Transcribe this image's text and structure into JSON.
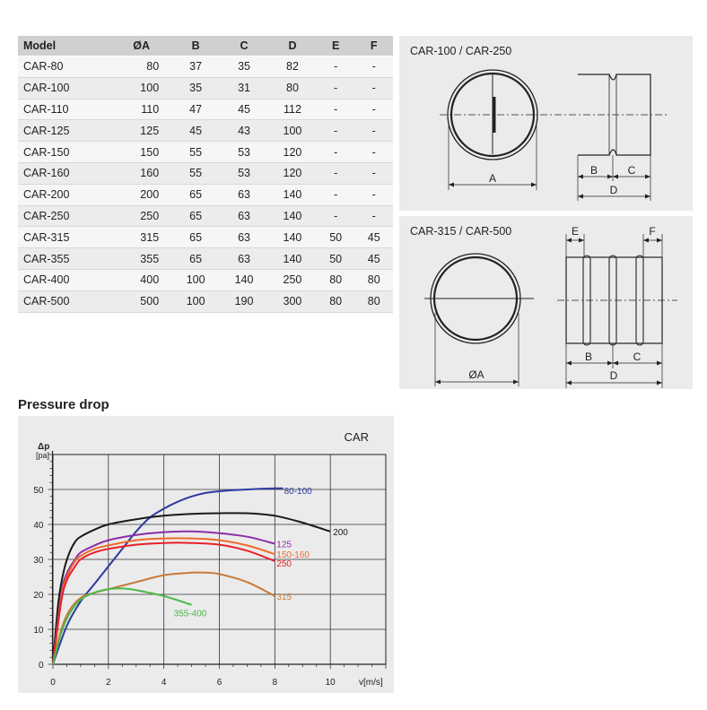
{
  "dimensions_table": {
    "headers": [
      "Model",
      "ØA",
      "B",
      "C",
      "D",
      "E",
      "F"
    ],
    "rows": [
      [
        "CAR-80",
        "80",
        "37",
        "35",
        "82",
        "-",
        "-"
      ],
      [
        "CAR-100",
        "100",
        "35",
        "31",
        "80",
        "-",
        "-"
      ],
      [
        "CAR-110",
        "110",
        "47",
        "45",
        "112",
        "-",
        "-"
      ],
      [
        "CAR-125",
        "125",
        "45",
        "43",
        "100",
        "-",
        "-"
      ],
      [
        "CAR-150",
        "150",
        "55",
        "53",
        "120",
        "-",
        "-"
      ],
      [
        "CAR-160",
        "160",
        "55",
        "53",
        "120",
        "-",
        "-"
      ],
      [
        "CAR-200",
        "200",
        "65",
        "63",
        "140",
        "-",
        "-"
      ],
      [
        "CAR-250",
        "250",
        "65",
        "63",
        "140",
        "-",
        "-"
      ],
      [
        "CAR-315",
        "315",
        "65",
        "63",
        "140",
        "50",
        "45"
      ],
      [
        "CAR-355",
        "355",
        "65",
        "63",
        "140",
        "50",
        "45"
      ],
      [
        "CAR-400",
        "400",
        "100",
        "140",
        "250",
        "80",
        "80"
      ],
      [
        "CAR-500",
        "500",
        "100",
        "190",
        "300",
        "80",
        "80"
      ]
    ]
  },
  "drawing_1": {
    "title": "CAR-100 / CAR-250",
    "labels": {
      "a": "A",
      "b": "B",
      "c": "C",
      "d": "D"
    }
  },
  "drawing_2": {
    "title": "CAR-315 / CAR-500",
    "labels": {
      "a": "ØA",
      "b": "B",
      "c": "C",
      "d": "D",
      "e": "E",
      "f": "F"
    }
  },
  "chart_title": "Pressure drop",
  "chart_data": {
    "type": "line",
    "title": "CAR",
    "ylabel_symbol": "Δp",
    "ylabel_unit": "[pa]",
    "xlabel": "v[m/s]",
    "xlim": [
      0,
      12
    ],
    "ylim": [
      0,
      60
    ],
    "xticks": [
      0,
      2,
      4,
      6,
      8,
      10
    ],
    "yticks": [
      0,
      10,
      20,
      30,
      40,
      50
    ],
    "grid": true,
    "series": [
      {
        "name": "80-100",
        "color": "#2d3aa0",
        "x": [
          0,
          0.5,
          1,
          1.5,
          2,
          2.5,
          3,
          3.5,
          4,
          4.5,
          5,
          5.5,
          6,
          6.5,
          7,
          7.5,
          8,
          8.3
        ],
        "y": [
          0,
          11,
          18,
          23,
          28,
          33,
          38,
          42,
          44.5,
          46.5,
          48,
          49,
          49.5,
          49.8,
          50,
          50.2,
          50.3,
          50.3
        ]
      },
      {
        "name": "200",
        "color": "#1a1a1a",
        "x": [
          0,
          0.2,
          0.4,
          0.6,
          0.8,
          1,
          1.5,
          2,
          3,
          4,
          5,
          6,
          7,
          8,
          9,
          10
        ],
        "y": [
          0,
          18,
          27,
          32,
          35,
          36.5,
          38.5,
          40,
          41.5,
          42.5,
          43,
          43.2,
          43.2,
          42.5,
          40.5,
          38
        ]
      },
      {
        "name": "125",
        "color": "#8b2fa8",
        "x": [
          0,
          0.3,
          0.5,
          0.8,
          1,
          1.5,
          2,
          3,
          4,
          5,
          6,
          7,
          8
        ],
        "y": [
          0,
          20,
          26,
          30,
          32,
          34,
          35.5,
          37,
          37.8,
          38,
          37.5,
          36.5,
          34.5
        ]
      },
      {
        "name": "150-160",
        "color": "#f06a2a",
        "x": [
          0,
          0.3,
          0.5,
          0.8,
          1,
          1.5,
          2,
          3,
          4,
          5,
          6,
          7,
          8
        ],
        "y": [
          0,
          19,
          25,
          29.5,
          31,
          33,
          34,
          35.5,
          36,
          36,
          35.5,
          34,
          31.5
        ]
      },
      {
        "name": "250",
        "color": "#e8202a",
        "x": [
          0,
          0.3,
          0.5,
          0.8,
          1,
          1.5,
          2,
          3,
          4,
          5,
          6,
          7,
          8
        ],
        "y": [
          0,
          18,
          24,
          28,
          30,
          32,
          33,
          34.2,
          34.7,
          34.7,
          34.2,
          32.5,
          29.5
        ]
      },
      {
        "name": "315",
        "color": "#c77a3a",
        "x": [
          0,
          0.3,
          0.6,
          1,
          1.5,
          2,
          3,
          4,
          5,
          5.5,
          6,
          7,
          8
        ],
        "y": [
          0,
          10,
          15.5,
          19,
          20.5,
          21.5,
          23.5,
          25.5,
          26.2,
          26.2,
          25.8,
          23.5,
          19.5
        ]
      },
      {
        "name": "355-400",
        "color": "#4cb848",
        "x": [
          0,
          0.3,
          0.6,
          1,
          1.5,
          2,
          2.5,
          3,
          4,
          5
        ],
        "y": [
          0,
          9,
          14.5,
          18.5,
          20.5,
          21.5,
          21.7,
          21.2,
          19.5,
          17
        ]
      }
    ]
  }
}
